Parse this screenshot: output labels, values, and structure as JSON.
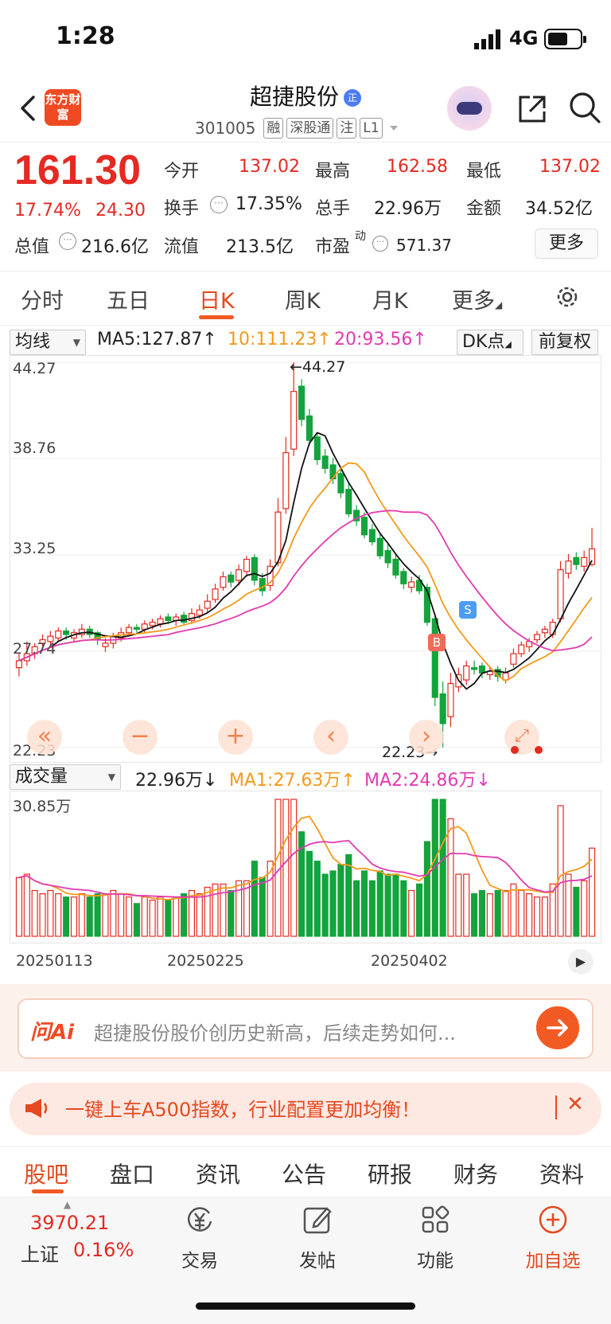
{
  "status": {
    "time": "1:28",
    "network": "4G"
  },
  "header": {
    "logo_text": "东方财富",
    "stock_name": "超捷股份",
    "badge": "正",
    "code": "301005",
    "tags": [
      "融",
      "深股通",
      "注",
      "L1"
    ]
  },
  "quote": {
    "price": "161.30",
    "pct": "17.74%",
    "change": "24.30",
    "fields": [
      {
        "label": "今开",
        "value": "137.02"
      },
      {
        "label": "最高",
        "value": "162.58"
      },
      {
        "label": "最低",
        "value": "137.02"
      },
      {
        "label": "换手",
        "value": "17.35%"
      },
      {
        "label": "总手",
        "value": "22.96万"
      },
      {
        "label": "金额",
        "value": "34.52亿"
      },
      {
        "label": "总值",
        "value": "216.6亿"
      },
      {
        "label": "流值",
        "value": "213.5亿"
      },
      {
        "label": "市盈",
        "value": "571.37"
      }
    ],
    "pe_sup": "动",
    "more": "更多"
  },
  "ktabs": [
    "分时",
    "五日",
    "日K",
    "周K",
    "月K",
    "更多"
  ],
  "indicator": {
    "select": "均线",
    "ma5": "MA5:127.87",
    "ma10": "10:111.23",
    "ma20": "20:93.56",
    "dk": "DK点",
    "adjust": "前复权",
    "arrow": "↑"
  },
  "chart_axis": {
    "top": "44.27",
    "l2": "38.76",
    "l3": "33.25",
    "l4": "27.74",
    "bottom": "22.23",
    "max_label": "←44.27",
    "min_label": "22.23→",
    "b_marker": "B",
    "s_marker": "S"
  },
  "volume": {
    "select": "成交量",
    "value": "22.96万",
    "ma1": "MA1:27.63万",
    "ma2": "MA2:24.86万",
    "down": "↓",
    "up": "↑",
    "top": "30.85万"
  },
  "dates": [
    "20250113",
    "20250225",
    "20250402"
  ],
  "colors": {
    "up": "#e42a22",
    "down": "#14a33c",
    "ma5": "#111111",
    "ma10": "#f39a1a",
    "ma20": "#e23ab0",
    "accent": "#f25a24"
  },
  "ai": {
    "logo": "问Ai",
    "text": "超捷股份股价创历史新高，后续走势如何..."
  },
  "notice": {
    "text": "一键上车A500指数，行业配置更加均衡！"
  },
  "btabs": [
    "股吧",
    "盘口",
    "资讯",
    "公告",
    "研报",
    "财务",
    "资料"
  ],
  "index": {
    "value": "3970.21",
    "name": "上证",
    "pct": "0.16%"
  },
  "nav": [
    {
      "label": "交易",
      "icon": "trade-icon"
    },
    {
      "label": "发帖",
      "icon": "post-icon"
    },
    {
      "label": "功能",
      "icon": "apps-icon"
    },
    {
      "label": "加自选",
      "icon": "add-watch-icon"
    }
  ],
  "chart_data": {
    "type": "candlestick",
    "ylim": [
      22.23,
      44.27
    ],
    "y_ticks": [
      44.27,
      38.76,
      33.25,
      27.74,
      22.23
    ],
    "x_ticks": [
      "20250113",
      "20250225",
      "20250402"
    ],
    "series": [
      {
        "name": "MA5",
        "value": 127.87
      },
      {
        "name": "MA10",
        "value": 111.23
      },
      {
        "name": "MA20",
        "value": 93.56
      }
    ],
    "closes": [
      27.2,
      27.6,
      28.0,
      28.4,
      28.6,
      28.9,
      28.7,
      28.8,
      29.0,
      28.7,
      28.4,
      28.2,
      28.6,
      28.8,
      29.1,
      29.0,
      29.3,
      29.4,
      29.6,
      29.5,
      29.7,
      29.4,
      29.9,
      30.1,
      30.6,
      31.3,
      32.0,
      31.7,
      32.4,
      33.0,
      31.8,
      31.2,
      32.6,
      35.7,
      39.1,
      42.6,
      41.0,
      39.8,
      38.7,
      38.2,
      37.6,
      36.8,
      35.6,
      35.2,
      34.4,
      34.0,
      33.2,
      32.8,
      32.1,
      31.6,
      31.7,
      31.2,
      29.4,
      25.1,
      23.6,
      25.9,
      26.4,
      26.9,
      26.7,
      26.5,
      26.6,
      26.3,
      26.5,
      27.6,
      28.1,
      28.3,
      28.7,
      29.0,
      29.4,
      32.4,
      32.9,
      32.7,
      33.1,
      33.6
    ],
    "opens": [
      26.8,
      27.2,
      27.6,
      28.2,
      28.3,
      28.5,
      28.9,
      28.5,
      28.7,
      29.0,
      28.8,
      28.0,
      28.2,
      28.5,
      28.8,
      29.1,
      29.0,
      29.2,
      29.3,
      29.7,
      29.5,
      29.8,
      29.5,
      29.8,
      30.2,
      30.7,
      31.4,
      32.1,
      31.8,
      32.3,
      33.1,
      31.9,
      31.5,
      32.8,
      35.9,
      39.3,
      42.9,
      41.2,
      40.0,
      38.9,
      38.4,
      37.9,
      37.0,
      35.8,
      35.4,
      34.7,
      34.2,
      33.5,
      33.0,
      32.3,
      31.4,
      31.8,
      31.4,
      29.6,
      25.3,
      24.0,
      25.7,
      26.1,
      26.8,
      26.9,
      26.4,
      26.7,
      26.1,
      27.0,
      27.6,
      28.0,
      28.4,
      28.8,
      28.7,
      29.6,
      32.2,
      33.1,
      32.6,
      32.7
    ],
    "highs": [
      27.6,
      28.3,
      28.2,
      28.7,
      28.9,
      29.1,
      29.1,
      29.0,
      29.3,
      29.2,
      28.9,
      28.5,
      28.8,
      29.1,
      29.3,
      29.3,
      29.5,
      29.6,
      29.8,
      29.9,
      29.9,
      30.0,
      30.2,
      30.4,
      31.0,
      31.6,
      32.3,
      32.3,
      32.7,
      33.2,
      33.3,
      32.2,
      33.0,
      36.5,
      40.0,
      44.27,
      43.3,
      41.6,
      40.2,
      39.3,
      38.8,
      38.2,
      37.4,
      36.1,
      35.7,
      35.0,
      34.5,
      33.9,
      33.3,
      32.5,
      32.0,
      32.1,
      31.6,
      29.9,
      26.0,
      26.5,
      26.8,
      27.2,
      27.2,
      27.1,
      26.9,
      26.9,
      26.8,
      27.9,
      28.3,
      28.5,
      28.9,
      29.2,
      29.6,
      32.9,
      33.3,
      33.4,
      33.5,
      34.8
    ],
    "lows": [
      26.3,
      26.9,
      27.3,
      27.9,
      28.0,
      28.3,
      28.4,
      28.3,
      28.5,
      28.5,
      28.1,
      27.7,
      27.9,
      28.3,
      28.6,
      28.8,
      28.8,
      29.0,
      29.1,
      29.3,
      29.2,
      29.2,
      29.3,
      29.6,
      30.0,
      30.5,
      31.2,
      31.4,
      31.5,
      32.0,
      31.5,
      30.9,
      31.2,
      32.6,
      35.6,
      38.9,
      40.6,
      39.5,
      38.4,
      37.9,
      37.3,
      36.5,
      35.4,
      34.9,
      34.2,
      33.8,
      33.0,
      32.5,
      31.9,
      31.3,
      31.1,
      31.0,
      29.2,
      24.6,
      22.23,
      23.4,
      25.4,
      25.8,
      26.4,
      26.2,
      26.1,
      26.0,
      25.9,
      26.8,
      27.4,
      27.7,
      28.2,
      28.5,
      28.5,
      29.4,
      31.9,
      32.4,
      32.3,
      32.6
    ],
    "volume_top": "30.85万"
  }
}
